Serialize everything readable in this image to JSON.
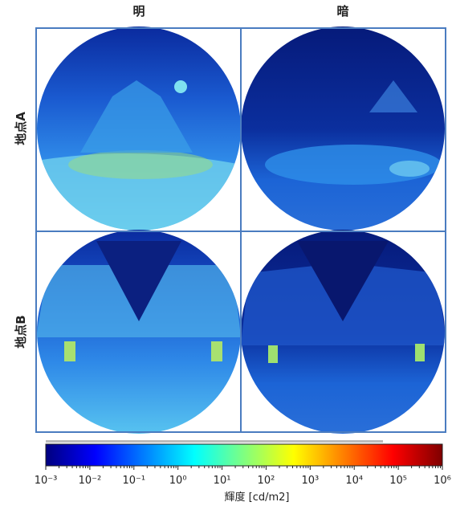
{
  "headers": {
    "columns": [
      "明",
      "暗"
    ],
    "rows": [
      "地点A",
      "地点B"
    ]
  },
  "colorbar": {
    "label": "輝度 [cd/m2]",
    "scale": "log",
    "lim": [
      0.001,
      1000000
    ],
    "ticks": [
      {
        "value": 0.001,
        "label": "10⁻³"
      },
      {
        "value": 0.01,
        "label": "10⁻²"
      },
      {
        "value": 0.1,
        "label": "10⁻¹"
      },
      {
        "value": 1,
        "label": "10⁰"
      },
      {
        "value": 10,
        "label": "10¹"
      },
      {
        "value": 100,
        "label": "10²"
      },
      {
        "value": 1000,
        "label": "10³"
      },
      {
        "value": 10000,
        "label": "10⁴"
      },
      {
        "value": 100000,
        "label": "10⁵"
      },
      {
        "value": 1000000,
        "label": "10⁶"
      }
    ],
    "colormap": [
      "#00007f",
      "#0000ff",
      "#0080ff",
      "#00ffff",
      "#80ff80",
      "#ffff00",
      "#ff8000",
      "#ff0000",
      "#7f0000"
    ]
  }
}
